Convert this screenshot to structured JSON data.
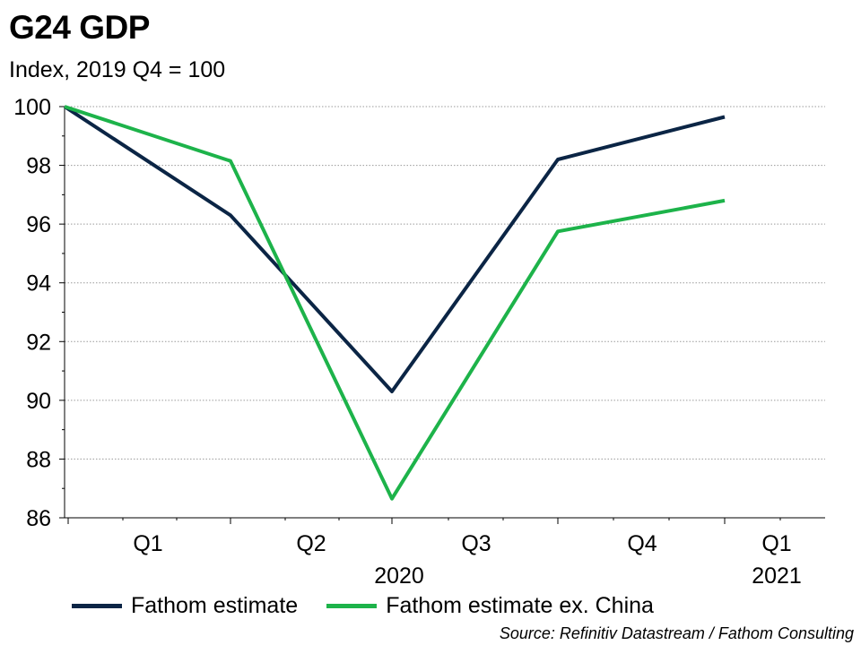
{
  "title": "G24 GDP",
  "subtitle": "Index, 2019 Q4 = 100",
  "source": "Source: Refinitiv Datastream / Fathom Consulting",
  "chart_data": {
    "type": "line",
    "title": "G24 GDP",
    "subtitle": "Index, 2019 Q4 = 100",
    "x": [
      "2019 Q4",
      "2020 Q1",
      "2020 Q2",
      "2020 Q3",
      "2020 Q4"
    ],
    "x_tick_labels": [
      "Q1",
      "Q2",
      "Q3",
      "Q4",
      "Q1"
    ],
    "x_year_labels": [
      "2020",
      "2021"
    ],
    "ylim": [
      86,
      100
    ],
    "yticks": [
      86,
      88,
      90,
      92,
      94,
      96,
      98,
      100
    ],
    "grid": "horizontal dotted",
    "legend_position": "bottom",
    "series": [
      {
        "name": "Fathom estimate",
        "color": "#0b2545",
        "values": [
          100,
          96.3,
          90.3,
          98.2,
          99.65
        ]
      },
      {
        "name": "Fathom estimate ex. China",
        "color": "#1db34a",
        "values": [
          100,
          98.15,
          86.65,
          95.75,
          96.8
        ]
      }
    ]
  }
}
